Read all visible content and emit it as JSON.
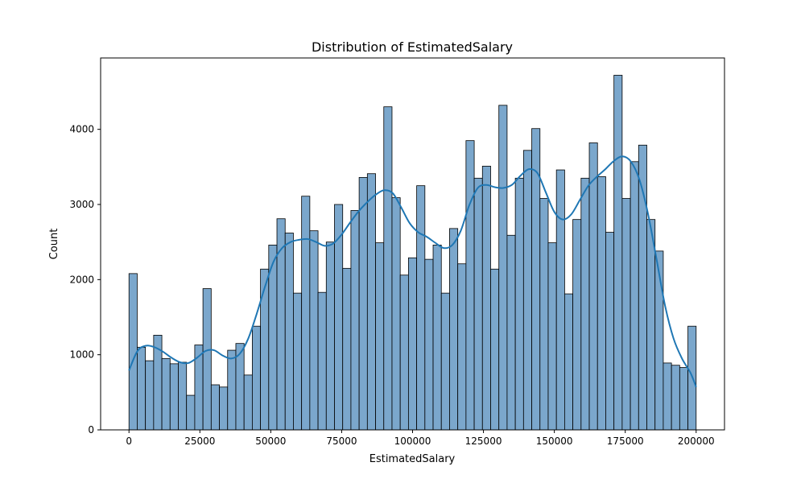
{
  "chart_data": {
    "type": "bar",
    "title": "Distribution of EstimatedSalary",
    "xlabel": "EstimatedSalary",
    "ylabel": "Count",
    "xlim": [
      -10000,
      210000
    ],
    "ylim": [
      0,
      4950
    ],
    "x_ticks": [
      0,
      25000,
      50000,
      75000,
      100000,
      125000,
      150000,
      175000,
      200000
    ],
    "y_ticks": [
      0,
      1000,
      2000,
      3000,
      4000
    ],
    "bin_start": 0,
    "bin_end": 200000,
    "bar_color": "#7ba7cc",
    "bar_edge_color": "#000000",
    "kde_color": "#1f77b4",
    "counts": [
      2080,
      1100,
      920,
      1260,
      950,
      880,
      900,
      460,
      1130,
      1880,
      600,
      570,
      1060,
      1150,
      730,
      1380,
      2140,
      2460,
      2810,
      2620,
      1820,
      3110,
      2650,
      1830,
      2500,
      3000,
      2150,
      2920,
      3360,
      3410,
      2490,
      4300,
      3090,
      2060,
      2290,
      3250,
      2270,
      2460,
      1820,
      2680,
      2210,
      3850,
      3350,
      3510,
      2140,
      4320,
      2590,
      3350,
      3720,
      4010,
      3080,
      2490,
      3460,
      1810,
      2800,
      3350,
      3820,
      3370,
      2630,
      4720,
      3080,
      3570,
      3790,
      2800,
      2380,
      890,
      860,
      830,
      1380
    ],
    "kde": {
      "x": [
        0,
        3000,
        6000,
        9000,
        12000,
        15000,
        18000,
        21000,
        24000,
        27000,
        30000,
        33000,
        36000,
        39000,
        42000,
        45000,
        48000,
        51000,
        54000,
        57000,
        60000,
        63000,
        66000,
        69000,
        72000,
        75000,
        78000,
        81000,
        84000,
        87000,
        90000,
        93000,
        96000,
        99000,
        102000,
        105000,
        108000,
        111000,
        114000,
        117000,
        120000,
        123000,
        126000,
        129000,
        132000,
        135000,
        138000,
        141000,
        144000,
        147000,
        150000,
        153000,
        156000,
        159000,
        162000,
        165000,
        168000,
        171000,
        174000,
        177000,
        180000,
        183000,
        186000,
        189000,
        192000,
        195000,
        198000,
        200000
      ],
      "y": [
        790,
        1050,
        1120,
        1100,
        1040,
        960,
        900,
        890,
        960,
        1050,
        1060,
        990,
        950,
        1010,
        1210,
        1540,
        1910,
        2240,
        2420,
        2500,
        2530,
        2540,
        2500,
        2450,
        2480,
        2600,
        2760,
        2910,
        3030,
        3130,
        3190,
        3150,
        2960,
        2750,
        2630,
        2570,
        2490,
        2420,
        2460,
        2650,
        2990,
        3220,
        3260,
        3230,
        3220,
        3260,
        3380,
        3470,
        3420,
        3160,
        2900,
        2800,
        2870,
        3060,
        3250,
        3370,
        3470,
        3580,
        3640,
        3570,
        3330,
        2880,
        2280,
        1660,
        1220,
        950,
        760,
        570
      ]
    }
  }
}
